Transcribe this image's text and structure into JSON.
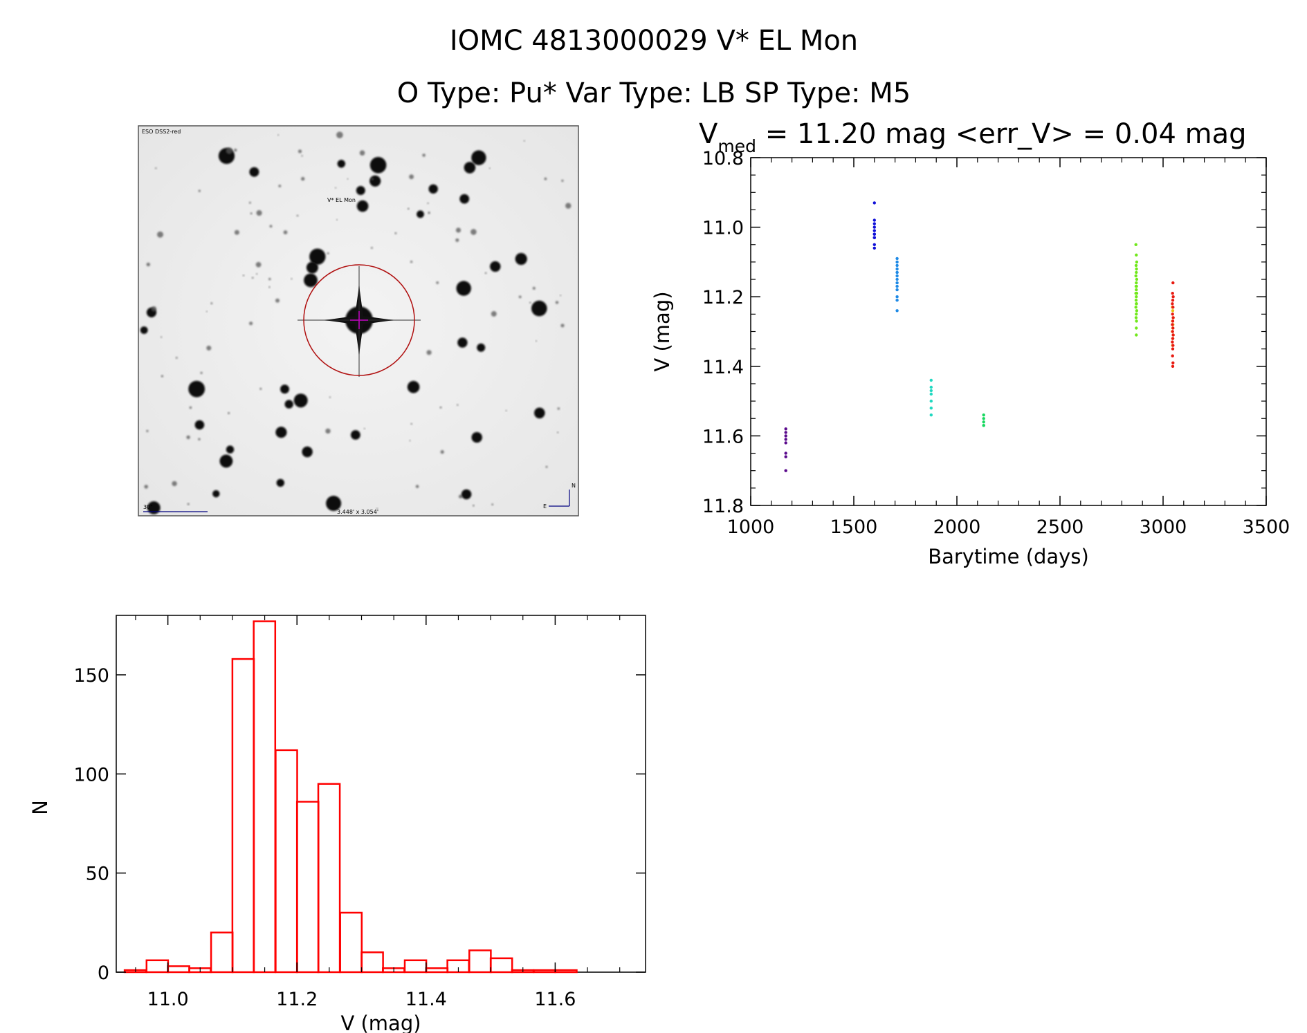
{
  "header": {
    "title": "IOMC 4813000029    V* EL Mon",
    "subtitle": "O Type: Pu*  Var Type: LB  SP Type: M5"
  },
  "finder_chart": {
    "survey_label": "ESO DSS2-red",
    "target_label": "V* EL Mon",
    "scale_label": "30\"",
    "fov_label": "3.448' x 3.054'",
    "north_label": "N",
    "east_label": "E",
    "circle_color": "#b01010",
    "label_color": "#000080"
  },
  "chart_data": [
    {
      "type": "scatter",
      "title": "V_med = 11.20 mag <err_V> = 0.04 mag",
      "title_parts": {
        "main": "V",
        "sub": "med",
        "rest": " = 11.20 mag <err_V> = 0.04 mag"
      },
      "xlabel": "Barytime (days)",
      "ylabel": "V (mag)",
      "xlim": [
        1000,
        3500
      ],
      "ylim": [
        11.8,
        10.8
      ],
      "y_inverted": true,
      "xticks": [
        "1000",
        "1500",
        "2000",
        "2500",
        "3000",
        "3500"
      ],
      "yticks": [
        "10.8",
        "11.0",
        "11.2",
        "11.4",
        "11.6",
        "11.8"
      ],
      "grid": false,
      "series": [
        {
          "color": "#5a0a8c",
          "x": [
            1170,
            1170,
            1170,
            1170,
            1170,
            1170,
            1170,
            1170
          ],
          "y": [
            11.58,
            11.59,
            11.6,
            11.61,
            11.62,
            11.65,
            11.66,
            11.7
          ]
        },
        {
          "color": "#1010d8",
          "x": [
            1600,
            1600,
            1600,
            1600,
            1600,
            1600,
            1600,
            1600,
            1600,
            1600,
            1600
          ],
          "y": [
            10.93,
            10.98,
            10.99,
            11.0,
            11.01,
            11.02,
            11.02,
            11.03,
            11.03,
            11.05,
            11.06
          ]
        },
        {
          "color": "#1e8ae6",
          "x": [
            1710,
            1710,
            1710,
            1710,
            1710,
            1710,
            1710,
            1710,
            1710,
            1710,
            1710,
            1710,
            1710,
            1710
          ],
          "y": [
            11.09,
            11.1,
            11.11,
            11.12,
            11.13,
            11.13,
            11.14,
            11.15,
            11.16,
            11.17,
            11.18,
            11.2,
            11.21,
            11.24
          ]
        },
        {
          "color": "#20d8c0",
          "x": [
            1875,
            1875,
            1875,
            1875,
            1875,
            1875,
            1875
          ],
          "y": [
            11.44,
            11.46,
            11.47,
            11.48,
            11.5,
            11.52,
            11.54
          ]
        },
        {
          "color": "#18d860",
          "x": [
            2130,
            2130,
            2130,
            2130,
            2130
          ],
          "y": [
            11.54,
            11.55,
            11.56,
            11.57,
            11.57
          ]
        },
        {
          "color": "#70e81a",
          "x": [
            2868,
            2870,
            2872,
            2869,
            2871,
            2870,
            2868,
            2872,
            2870,
            2869,
            2871,
            2870,
            2868,
            2872,
            2870,
            2869,
            2871,
            2870,
            2868,
            2872,
            2870,
            2869,
            2871,
            2870,
            2870
          ],
          "y": [
            11.05,
            11.08,
            11.1,
            11.11,
            11.12,
            11.13,
            11.14,
            11.15,
            11.16,
            11.17,
            11.17,
            11.18,
            11.19,
            11.19,
            11.2,
            11.21,
            11.22,
            11.22,
            11.23,
            11.24,
            11.25,
            11.26,
            11.27,
            11.29,
            11.31
          ]
        },
        {
          "color": "#e8c010",
          "x": [
            3045,
            3047,
            3049,
            3046,
            3048,
            3047,
            3045,
            3049,
            3047,
            3046
          ],
          "y": [
            11.23,
            11.24,
            11.26,
            11.27,
            11.28,
            11.29,
            11.3,
            11.31,
            11.32,
            11.34
          ]
        },
        {
          "color": "#e81a10",
          "x": [
            3048,
            3046,
            3049,
            3047,
            3045,
            3048,
            3046,
            3049,
            3047,
            3045,
            3048,
            3046,
            3049,
            3047,
            3045,
            3048,
            3047,
            3046,
            3048,
            3047
          ],
          "y": [
            11.16,
            11.19,
            11.2,
            11.21,
            11.22,
            11.23,
            11.25,
            11.26,
            11.27,
            11.28,
            11.29,
            11.3,
            11.31,
            11.32,
            11.33,
            11.34,
            11.35,
            11.37,
            11.39,
            11.4
          ]
        }
      ]
    },
    {
      "type": "bar",
      "subtype": "histogram",
      "xlabel": "V (mag)",
      "ylabel": "N",
      "xlim": [
        10.92,
        11.74
      ],
      "ylim": [
        0,
        180
      ],
      "xticks": [
        "11.0",
        "11.2",
        "11.4",
        "11.6"
      ],
      "yticks": [
        "0",
        "50",
        "100",
        "150"
      ],
      "bin_width": 0.0333,
      "bar_color": "#ff0000",
      "bins": [
        {
          "x0": 10.933,
          "n": 1
        },
        {
          "x0": 10.967,
          "n": 6
        },
        {
          "x0": 11.0,
          "n": 3
        },
        {
          "x0": 11.033,
          "n": 2
        },
        {
          "x0": 11.067,
          "n": 20
        },
        {
          "x0": 11.1,
          "n": 158
        },
        {
          "x0": 11.133,
          "n": 177
        },
        {
          "x0": 11.167,
          "n": 112
        },
        {
          "x0": 11.2,
          "n": 86
        },
        {
          "x0": 11.233,
          "n": 95
        },
        {
          "x0": 11.267,
          "n": 30
        },
        {
          "x0": 11.3,
          "n": 10
        },
        {
          "x0": 11.333,
          "n": 2
        },
        {
          "x0": 11.367,
          "n": 6
        },
        {
          "x0": 11.4,
          "n": 2
        },
        {
          "x0": 11.433,
          "n": 6
        },
        {
          "x0": 11.467,
          "n": 11
        },
        {
          "x0": 11.5,
          "n": 7
        },
        {
          "x0": 11.533,
          "n": 1
        },
        {
          "x0": 11.567,
          "n": 1
        },
        {
          "x0": 11.6,
          "n": 1
        }
      ]
    }
  ]
}
